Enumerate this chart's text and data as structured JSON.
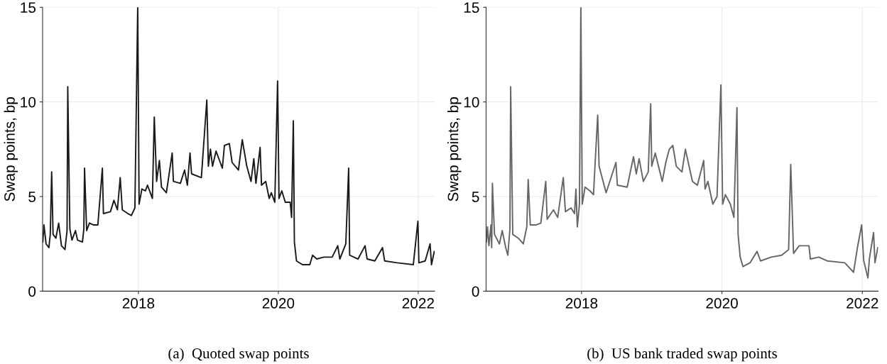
{
  "chart_data": [
    {
      "type": "line",
      "title": "(a)  Quoted swap points",
      "ylabel": "Swap points, bp",
      "color": "#1a1a1a",
      "grid": true,
      "xlim": [
        2016.63,
        2022.235
      ],
      "ylim": [
        0,
        15
      ],
      "xticks": [
        2018,
        2020,
        2022
      ],
      "yticks": [
        0,
        5,
        10,
        15
      ],
      "x": [
        2016.633,
        2016.65,
        2016.68,
        2016.72,
        2016.74,
        2016.76,
        2016.78,
        2016.82,
        2016.86,
        2016.9,
        2016.95,
        2016.98,
        2016.99,
        2017.02,
        2017.05,
        2017.1,
        2017.13,
        2017.2,
        2017.22,
        2017.23,
        2017.26,
        2017.3,
        2017.36,
        2017.42,
        2017.485,
        2017.5,
        2017.6,
        2017.65,
        2017.7,
        2017.74,
        2017.77,
        2017.85,
        2017.9,
        2017.95,
        2017.99,
        2018.01,
        2018.05,
        2018.1,
        2018.13,
        2018.2,
        2018.227,
        2018.26,
        2018.3,
        2018.33,
        2018.4,
        2018.483,
        2018.5,
        2018.6,
        2018.66,
        2018.7,
        2018.738,
        2018.76,
        2018.9,
        2018.978,
        2019.0,
        2019.03,
        2019.06,
        2019.11,
        2019.2,
        2019.23,
        2019.3,
        2019.34,
        2019.43,
        2019.485,
        2019.55,
        2019.61,
        2019.65,
        2019.68,
        2019.74,
        2019.76,
        2019.82,
        2019.87,
        2019.9,
        2019.95,
        2019.99,
        2020.01,
        2020.05,
        2020.1,
        2020.17,
        2020.19,
        2020.215,
        2020.23,
        2020.26,
        2020.345,
        2020.45,
        2020.49,
        2020.55,
        2020.65,
        2020.77,
        2020.85,
        2020.88,
        2020.965,
        2021.006,
        2021.02,
        2021.14,
        2021.24,
        2021.27,
        2021.38,
        2021.49,
        2021.52,
        2021.7,
        2021.93,
        2021.996,
        2022.01,
        2022.1,
        2022.17,
        2022.19,
        2022.23
      ],
      "values": [
        2.6,
        3.5,
        2.5,
        2.3,
        3.0,
        6.3,
        3.0,
        2.8,
        3.6,
        2.4,
        2.2,
        3.2,
        10.8,
        3.3,
        2.7,
        3.2,
        2.7,
        2.6,
        3.3,
        6.5,
        3.2,
        3.6,
        3.5,
        3.5,
        6.5,
        4.1,
        4.2,
        4.8,
        4.3,
        6.0,
        4.3,
        4.1,
        4.0,
        4.4,
        15.0,
        4.6,
        5.4,
        5.3,
        5.6,
        4.9,
        9.2,
        5.8,
        6.9,
        5.5,
        5.2,
        7.3,
        5.8,
        5.7,
        6.4,
        5.6,
        7.3,
        6.2,
        6.0,
        10.1,
        6.6,
        7.5,
        6.6,
        7.4,
        6.5,
        7.7,
        7.8,
        6.8,
        6.4,
        8.0,
        6.6,
        5.8,
        7.0,
        5.7,
        7.6,
        5.6,
        5.8,
        4.9,
        5.2,
        4.7,
        11.1,
        4.9,
        5.3,
        4.7,
        4.7,
        3.9,
        9.0,
        2.6,
        1.6,
        1.4,
        1.4,
        1.9,
        1.7,
        1.8,
        1.8,
        2.4,
        1.7,
        2.5,
        6.5,
        1.9,
        1.7,
        2.4,
        1.7,
        1.6,
        2.3,
        1.6,
        1.5,
        1.4,
        3.7,
        1.5,
        1.6,
        2.5,
        1.4,
        2.1
      ]
    },
    {
      "type": "line",
      "title": "(b)  US bank traded swap points",
      "ylabel": "Swap points, bp",
      "color": "#666666",
      "grid": true,
      "xlim": [
        2016.64,
        2022.225
      ],
      "ylim": [
        0,
        15
      ],
      "xticks": [
        2018,
        2020,
        2022
      ],
      "yticks": [
        0,
        5,
        10,
        15
      ],
      "x": [
        2016.645,
        2016.66,
        2016.68,
        2016.71,
        2016.72,
        2016.73,
        2016.76,
        2016.83,
        2016.87,
        2016.92,
        2016.95,
        2016.98,
        2016.99,
        2017.02,
        2017.1,
        2017.17,
        2017.22,
        2017.24,
        2017.27,
        2017.35,
        2017.42,
        2017.49,
        2017.51,
        2017.6,
        2017.66,
        2017.74,
        2017.77,
        2017.85,
        2017.9,
        2017.92,
        2017.94,
        2017.97,
        2017.99,
        2018.01,
        2018.05,
        2018.12,
        2018.17,
        2018.23,
        2018.25,
        2018.3,
        2018.35,
        2018.49,
        2018.51,
        2018.65,
        2018.74,
        2018.78,
        2018.82,
        2018.88,
        2018.95,
        2018.985,
        2019.0,
        2019.05,
        2019.15,
        2019.2,
        2019.25,
        2019.3,
        2019.35,
        2019.43,
        2019.48,
        2019.52,
        2019.58,
        2019.65,
        2019.74,
        2019.76,
        2019.8,
        2019.87,
        2019.93,
        2019.985,
        2020.01,
        2020.05,
        2020.12,
        2020.17,
        2020.214,
        2020.23,
        2020.26,
        2020.3,
        2020.4,
        2020.5,
        2020.55,
        2020.7,
        2020.85,
        2020.95,
        2020.98,
        2021.02,
        2021.1,
        2021.24,
        2021.26,
        2021.38,
        2021.5,
        2021.75,
        2021.875,
        2021.93,
        2021.99,
        2022.02,
        2022.08,
        2022.1,
        2022.16,
        2022.18,
        2022.22
      ],
      "values": [
        2.6,
        3.4,
        2.4,
        3.5,
        2.3,
        5.7,
        3.0,
        2.5,
        3.2,
        2.3,
        1.9,
        3.3,
        10.8,
        3.0,
        2.8,
        2.5,
        3.4,
        5.9,
        3.5,
        3.5,
        3.6,
        5.8,
        3.8,
        4.3,
        3.9,
        6.0,
        4.2,
        4.4,
        4.1,
        5.4,
        3.4,
        4.6,
        15.0,
        4.6,
        5.5,
        5.3,
        5.1,
        9.3,
        6.6,
        5.9,
        5.2,
        6.8,
        5.6,
        5.5,
        7.1,
        6.2,
        7.0,
        5.8,
        6.3,
        9.9,
        6.6,
        7.3,
        5.8,
        6.8,
        7.5,
        7.7,
        6.6,
        6.3,
        7.5,
        6.8,
        5.8,
        5.6,
        6.9,
        5.4,
        5.8,
        4.6,
        5.0,
        10.9,
        4.6,
        5.1,
        4.6,
        3.9,
        9.7,
        3.0,
        1.8,
        1.3,
        1.5,
        2.1,
        1.6,
        1.8,
        1.9,
        2.2,
        6.7,
        2.0,
        2.4,
        2.4,
        1.7,
        1.8,
        1.6,
        1.5,
        1.0,
        2.3,
        3.5,
        1.6,
        0.7,
        1.7,
        3.1,
        1.5,
        2.3
      ]
    }
  ]
}
